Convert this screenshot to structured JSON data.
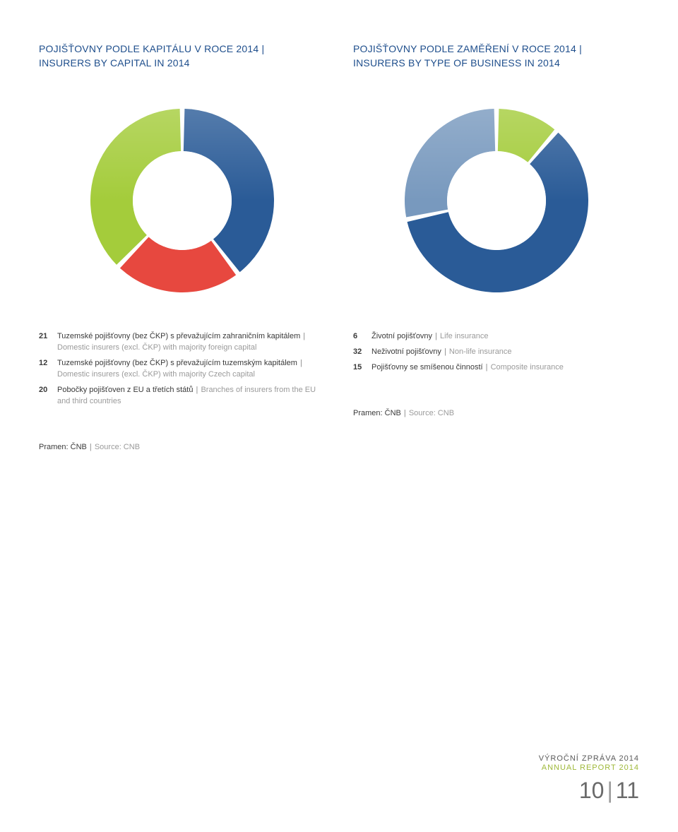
{
  "left": {
    "title_line1": "POJIŠŤOVNY PODLE KAPITÁLU V ROCE 2014 |",
    "title_line2": "INSURERS BY CAPITAL IN 2014",
    "chart": {
      "type": "donut",
      "values": [
        21,
        12,
        20
      ],
      "colors": [
        "#2a5b97",
        "#e7483f",
        "#a4cc3b"
      ],
      "gap_color": "#ffffff",
      "gap_width_deg": 3,
      "background": "#ffffff",
      "outer_radius": 130,
      "inner_radius": 70,
      "start_angle_deg": -90,
      "gloss_opacity": 0.2
    },
    "legend": [
      {
        "n": "21",
        "primary": "Tuzemské pojišťovny (bez ČKP) s převažujícím zahraničním kapitálem",
        "secondary": "Domestic insurers (excl. ČKP) with majority foreign capital"
      },
      {
        "n": "12",
        "primary": "Tuzemské pojišťovny (bez ČKP) s převažujícím tuzemským kapitálem",
        "secondary": "Domestic insurers (excl. ČKP) with majority Czech capital"
      },
      {
        "n": "20",
        "primary": "Pobočky pojišťoven z EU a třetích států",
        "secondary": "Branches of insurers from the EU and third countries"
      }
    ],
    "source_primary": "Pramen: ČNB",
    "source_secondary": "Source: CNB"
  },
  "right": {
    "title_line1": "POJIŠŤOVNY PODLE ZAMĚŘENÍ V ROCE 2014 |",
    "title_line2": "INSURERS BY TYPE OF BUSINESS IN 2014",
    "chart": {
      "type": "donut",
      "values": [
        6,
        32,
        15
      ],
      "colors": [
        "#a4cc3b",
        "#2a5b97",
        "#7899be"
      ],
      "gap_color": "#ffffff",
      "gap_width_deg": 3,
      "background": "#ffffff",
      "outer_radius": 130,
      "inner_radius": 70,
      "start_angle_deg": -90,
      "gloss_opacity": 0.2
    },
    "legend": [
      {
        "n": "6",
        "primary": "Životní pojišťovny",
        "secondary": "Life insurance"
      },
      {
        "n": "32",
        "primary": "Neživotní pojišťovny",
        "secondary": "Non-life insurance"
      },
      {
        "n": "15",
        "primary": "Pojišťovny se smíšenou činností",
        "secondary": "Composite insurance"
      }
    ],
    "source_primary": "Pramen: ČNB",
    "source_secondary": "Source: CNB"
  },
  "footer": {
    "line1": "VÝROČNÍ ZPRÁVA 2014",
    "line2": "ANNUAL REPORT 2014",
    "page_left": "10",
    "page_right": "11"
  }
}
